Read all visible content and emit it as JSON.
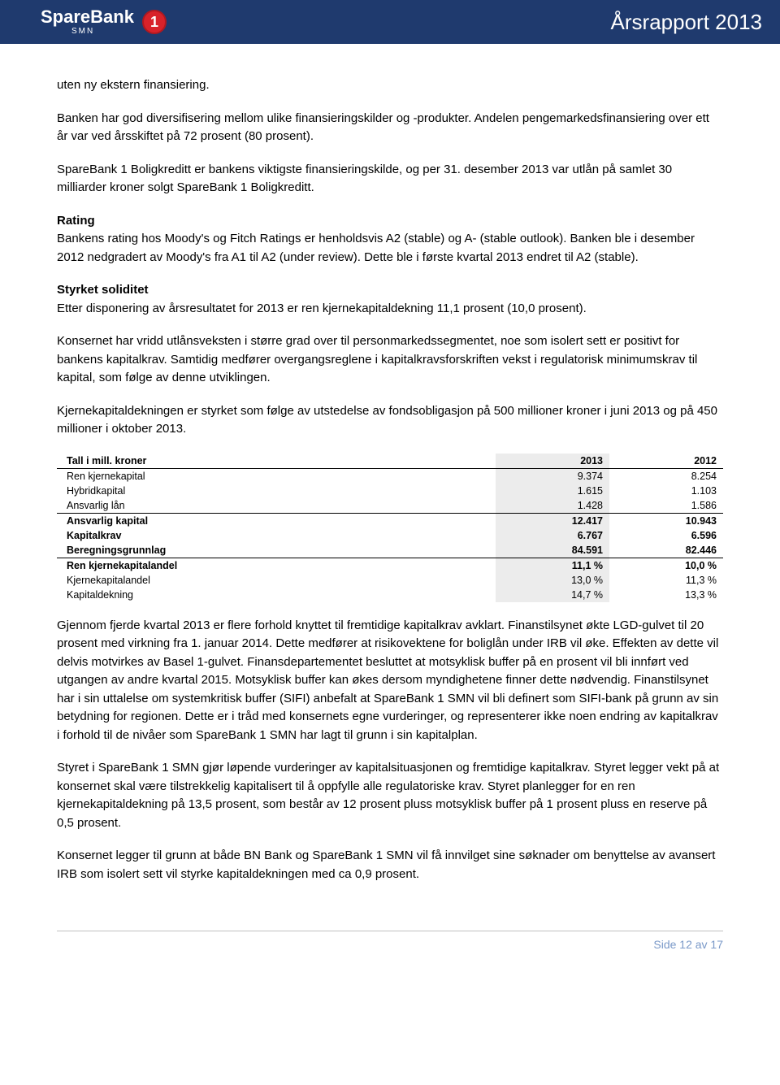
{
  "header": {
    "brand_main": "SpareBank",
    "brand_sub": "SMN",
    "badge_text": "1",
    "title": "Årsrapport 2013",
    "bg_color": "#1f3a6e",
    "badge_color": "#d8222a"
  },
  "body": {
    "p1": "uten ny ekstern finansiering.",
    "p2": "Banken har god diversifisering mellom ulike finansieringskilder og -produkter. Andelen pengemarkedsfinansiering over ett år var ved årsskiftet på 72 prosent (80 prosent).",
    "p3": "SpareBank 1 Boligkreditt er bankens viktigste finansieringskilde, og per 31. desember 2013 var utlån på samlet 30 milliarder kroner solgt SpareBank 1 Boligkreditt.",
    "h_rating": "Rating",
    "p_rating": "Bankens rating hos Moody's og Fitch Ratings er henholdsvis A2 (stable) og A- (stable outlook). Banken ble i desember 2012 nedgradert av Moody's fra A1 til A2 (under review). Dette ble i første kvartal 2013 endret til A2 (stable).",
    "h_solid": "Styrket soliditet",
    "p_solid1": "Etter disponering av årsresultatet for 2013 er ren kjernekapitaldekning 11,1 prosent (10,0 prosent).",
    "p_solid2": "Konsernet har vridd utlånsveksten i større grad over til personmarkedssegmentet, noe som isolert sett er positivt for bankens kapitalkrav. Samtidig medfører overgangsreglene i kapitalkravsforskriften vekst i regulatorisk minimumskrav til kapital, som følge av denne utviklingen.",
    "p_solid3": "Kjernekapitaldekningen er styrket som følge av utstedelse av fondsobligasjon på 500 millioner kroner i juni 2013 og på 450 millioner i oktober 2013.",
    "p_after1": "Gjennom fjerde kvartal 2013 er flere forhold knyttet til fremtidige kapitalkrav avklart. Finanstilsynet økte LGD-gulvet til 20 prosent med virkning fra 1. januar 2014. Dette medfører at risikovektene for boliglån under IRB vil øke. Effekten av dette vil delvis motvirkes av Basel 1-gulvet. Finansdepartementet besluttet at motsyklisk buffer på en prosent vil bli innført ved utgangen av andre kvartal 2015. Motsyklisk buffer kan økes dersom myndighetene finner dette nødvendig. Finanstilsynet har i sin uttalelse om systemkritisk buffer (SIFI) anbefalt at SpareBank 1 SMN vil bli definert som SIFI-bank på grunn av sin betydning for regionen. Dette er i tråd med konsernets egne vurderinger, og representerer ikke noen endring av kapitalkrav i forhold til de nivåer som SpareBank 1 SMN har lagt til grunn i sin kapitalplan.",
    "p_after2": "Styret i SpareBank 1 SMN gjør løpende vurderinger av kapitalsituasjonen og fremtidige kapitalkrav. Styret legger vekt på at konsernet skal være tilstrekkelig kapitalisert til å oppfylle alle regulatoriske krav. Styret planlegger for en ren kjernekapitaldekning på 13,5 prosent, som består av 12 prosent pluss motsyklisk buffer på 1 prosent pluss en reserve på 0,5 prosent.",
    "p_after3": "Konsernet legger til grunn at både BN Bank og SpareBank 1 SMN vil få innvilget sine søknader om benyttelse av avansert IRB som isolert sett vil styrke kapitaldekningen med ca 0,9 prosent."
  },
  "table": {
    "type": "table",
    "highlight_bg": "#ececec",
    "border_color": "#000000",
    "font_size": 12.5,
    "columns": [
      "Tall i mill. kroner",
      "2013",
      "2012"
    ],
    "rows": [
      {
        "label": "Ren kjernekapital",
        "y2013": "9.374",
        "y2012": "8.254",
        "bold": false,
        "sep": false
      },
      {
        "label": "Hybridkapital",
        "y2013": "1.615",
        "y2012": "1.103",
        "bold": false,
        "sep": false
      },
      {
        "label": "Ansvarlig lån",
        "y2013": "1.428",
        "y2012": "1.586",
        "bold": false,
        "sep": true
      },
      {
        "label": "Ansvarlig kapital",
        "y2013": "12.417",
        "y2012": "10.943",
        "bold": true,
        "sep": false
      },
      {
        "label": "Kapitalkrav",
        "y2013": "6.767",
        "y2012": "6.596",
        "bold": true,
        "sep": false
      },
      {
        "label": "Beregningsgrunnlag",
        "y2013": "84.591",
        "y2012": "82.446",
        "bold": true,
        "sep": true
      },
      {
        "label": "Ren kjernekapitalandel",
        "y2013": "11,1 %",
        "y2012": "10,0 %",
        "bold": true,
        "sep": false
      },
      {
        "label": "Kjernekapitalandel",
        "y2013": "13,0 %",
        "y2012": "11,3 %",
        "bold": false,
        "sep": false
      },
      {
        "label": "Kapitaldekning",
        "y2013": "14,7 %",
        "y2012": "13,3 %",
        "bold": false,
        "sep": false
      }
    ]
  },
  "footer": {
    "text": "Side 12 av 17",
    "color": "#7a99c8"
  }
}
